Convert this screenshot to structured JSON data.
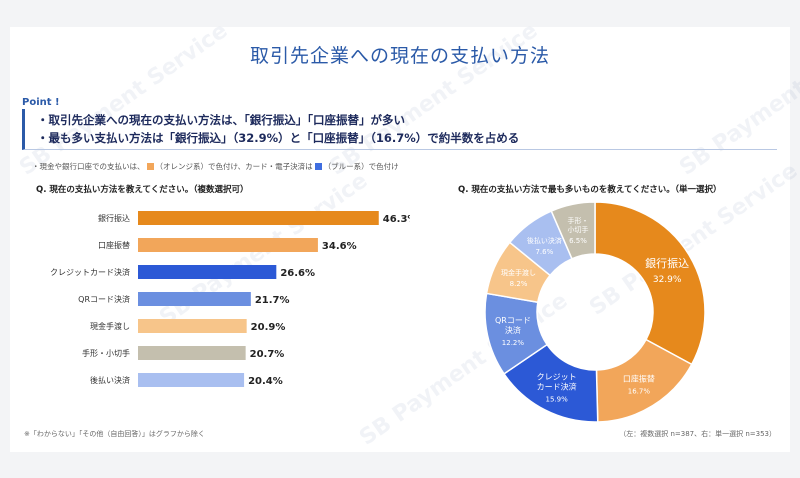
{
  "title": "取引先企業への現在の支払い方法",
  "point": {
    "label": "Point !",
    "line1": "・取引先企業への現在の支払い方法は、「銀行振込」「口座振替」が多い",
    "line2": "・最も多い支払い方法は「銀行振込」（32.9%）と「口座振替」（16.7%）で約半数を占める"
  },
  "note": {
    "prefix": "・現金や銀行口座での支払いは、",
    "orange": "（オレンジ系）で色付け、カード・電子決済は",
    "blue": "（ブルー系）で色付け"
  },
  "watermark": "SB Payment Service",
  "colors": {
    "title": "#2b5aa8",
    "orange_legend": "#f2a65a",
    "blue_legend": "#3f6ee0"
  },
  "chart_data": [
    {
      "type": "bar",
      "orientation": "horizontal",
      "title": "Q. 現在の支払い方法を教えてください。（複数選択可）",
      "categories": [
        "銀行振込",
        "口座振替",
        "クレジットカード決済",
        "QRコード決済",
        "現金手渡し",
        "手形・小切手",
        "後払い決済"
      ],
      "values": [
        46.3,
        34.6,
        26.6,
        21.7,
        20.9,
        20.7,
        20.4
      ],
      "labels": [
        "46.3%",
        "34.6%",
        "26.6%",
        "21.7%",
        "20.9%",
        "20.7%",
        "20.4%"
      ],
      "colors": [
        "#e6891c",
        "#f2a65a",
        "#2c59d6",
        "#6b8fe0",
        "#f7c58a",
        "#c4bfae",
        "#a9bff0"
      ],
      "xlim": [
        0,
        50
      ]
    },
    {
      "type": "pie",
      "donut": true,
      "title": "Q. 現在の支払い方法で最も多いものを教えてください。（単一選択）",
      "slices": [
        {
          "label": "銀行振込",
          "value": 32.9,
          "value_label": "32.9%",
          "color": "#e6891c",
          "text_color": "#ffffff"
        },
        {
          "label": "口座振替",
          "value": 16.7,
          "value_label": "16.7%",
          "color": "#f2a65a",
          "text_color": "#ffffff"
        },
        {
          "label": "クレジット\nカード決済",
          "value": 15.9,
          "value_label": "15.9%",
          "color": "#2c59d6",
          "text_color": "#ffffff"
        },
        {
          "label": "QRコード\n決済",
          "value": 12.2,
          "value_label": "12.2%",
          "color": "#6b8fe0",
          "text_color": "#ffffff"
        },
        {
          "label": "現金手渡し",
          "value": 8.2,
          "value_label": "8.2%",
          "color": "#f7c58a",
          "text_color": "#ffffff"
        },
        {
          "label": "後払い決済",
          "value": 7.6,
          "value_label": "7.6%",
          "color": "#a9bff0",
          "text_color": "#ffffff"
        },
        {
          "label": "手形・\n小切手",
          "value": 6.5,
          "value_label": "6.5%",
          "color": "#c4bfae",
          "text_color": "#ffffff"
        }
      ]
    }
  ],
  "footer": {
    "left": "※「わからない」「その他（自由回答）」はグラフから除く",
    "right": "（左：複数選択 n=387、右：単一選択 n=353）"
  }
}
